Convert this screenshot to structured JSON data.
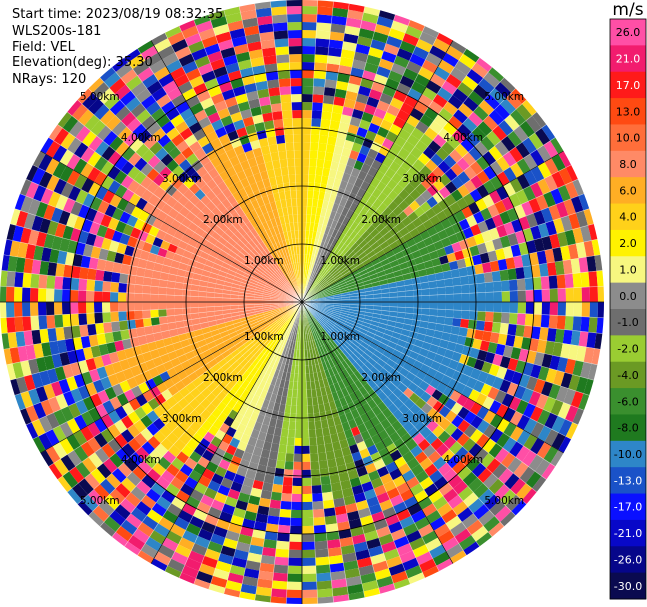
{
  "header": {
    "start_time": "Start time: 2023/08/19 08:32:35",
    "instrument": "WLS200s-181",
    "field": "Field: VEL",
    "elevation": "Elevation(deg): 35.30",
    "nrays": "NRays: 120"
  },
  "colorbar": {
    "unit": "m/s",
    "bins": [
      {
        "label": "26.0",
        "color": "#ff4fa6"
      },
      {
        "label": "21.0",
        "color": "#f21c6e"
      },
      {
        "label": "17.0",
        "color": "#ff1a1a"
      },
      {
        "label": "13.0",
        "color": "#ff4a12"
      },
      {
        "label": "10.0",
        "color": "#ff6e3a"
      },
      {
        "label": "8.0",
        "color": "#ff8a66"
      },
      {
        "label": "6.0",
        "color": "#ffae24"
      },
      {
        "label": "4.0",
        "color": "#ffd11a"
      },
      {
        "label": "2.0",
        "color": "#fff200"
      },
      {
        "label": "1.0",
        "color": "#f7f780"
      },
      {
        "label": "0.0",
        "color": "#8c8c8c"
      },
      {
        "label": "-1.0",
        "color": "#6e6e6e"
      },
      {
        "label": "-2.0",
        "color": "#9acd32"
      },
      {
        "label": "-4.0",
        "color": "#6b9a24"
      },
      {
        "label": "-6.0",
        "color": "#3a8f2e"
      },
      {
        "label": "-8.0",
        "color": "#1f7a1f"
      },
      {
        "label": "-10.0",
        "color": "#2e86c8"
      },
      {
        "label": "-13.0",
        "color": "#1a52c8"
      },
      {
        "label": "-17.0",
        "color": "#0a10ff"
      },
      {
        "label": "-21.0",
        "color": "#0808c8"
      },
      {
        "label": "-26.0",
        "color": "#06068a"
      },
      {
        "label": "-30.0",
        "color": "#0a0a50"
      }
    ]
  },
  "range_rings": {
    "labels": [
      "1.00km",
      "2.00km",
      "3.00km",
      "4.00km",
      "5.00km"
    ]
  },
  "plot": {
    "nrays": 120
  }
}
